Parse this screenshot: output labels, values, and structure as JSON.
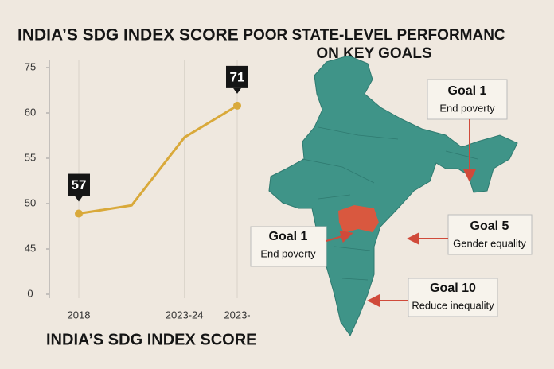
{
  "chart_data": {
    "type": "line",
    "title": "INDIA’S SDG INDEX SCORE",
    "xlabel": "INDIA’S SDG INDEX SCORE",
    "categories": [
      "2018",
      null,
      "2023-24",
      "2023-"
    ],
    "values": [
      48.9,
      49.8,
      57.3,
      62.4
    ],
    "color": "#d9a93a",
    "annotations": [
      "57",
      "71"
    ],
    "ylim": [
      0,
      75
    ],
    "yticks": [
      0,
      45,
      50,
      55,
      60,
      75
    ],
    "grid": true
  },
  "map": {
    "title": [
      "POOR STATE-LEVEL PERFORMANC",
      "ON KEY GOALS"
    ],
    "callouts": [
      {
        "goal": "Goal 1",
        "text": "End poverty"
      },
      {
        "goal": "Goal 5",
        "text": "Gender equality"
      },
      {
        "goal": "Goal 1",
        "text": "End poverty"
      },
      {
        "goal": "Goal 10",
        "text": "Reduce inequality"
      }
    ]
  }
}
